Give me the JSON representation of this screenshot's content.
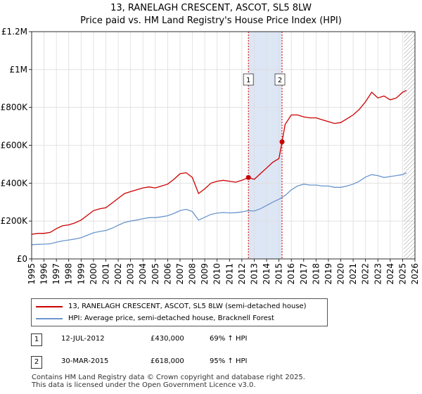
{
  "title": "13, RANELAGH CRESCENT, ASCOT, SL5 8LW",
  "subtitle": "Price paid vs. HM Land Registry's House Price Index (HPI)",
  "legend": {
    "property_label": "13, RANELAGH CRESCENT, ASCOT, SL5 8LW (semi-detached house)",
    "hpi_label": "HPI: Average price, semi-detached house, Bracknell Forest"
  },
  "transactions": [
    {
      "num": "1",
      "date": "12-JUL-2012",
      "price": "£430,000",
      "hpi": "69% ↑ HPI"
    },
    {
      "num": "2",
      "date": "30-MAR-2015",
      "price": "£618,000",
      "hpi": "95% ↑ HPI"
    }
  ],
  "footer": {
    "line1": "Contains HM Land Registry data © Crown copyright and database right 2025.",
    "line2": "This data is licensed under the Open Government Licence v3.0."
  },
  "colors": {
    "property": "#cc0000",
    "hpi": "#6a96cc",
    "highlight": "#dde6f5",
    "grid": "#dddddd",
    "marker_line": "#cc0000"
  },
  "chart_data": {
    "type": "line",
    "x_range": [
      1995,
      2026
    ],
    "y_range": [
      0,
      1200000
    ],
    "x_ticks": [
      "1995",
      "1996",
      "1997",
      "1998",
      "1999",
      "2000",
      "2001",
      "2002",
      "2003",
      "2004",
      "2005",
      "2006",
      "2007",
      "2008",
      "2009",
      "2010",
      "2011",
      "2012",
      "2013",
      "2014",
      "2015",
      "2016",
      "2017",
      "2018",
      "2019",
      "2020",
      "2021",
      "2022",
      "2023",
      "2024",
      "2025",
      "2026"
    ],
    "y_ticks": [
      {
        "value": 0,
        "label": "£0"
      },
      {
        "value": 200000,
        "label": "£200K"
      },
      {
        "value": 400000,
        "label": "£400K"
      },
      {
        "value": 600000,
        "label": "£600K"
      },
      {
        "value": 800000,
        "label": "£800K"
      },
      {
        "value": 1000000,
        "label": "£1M"
      },
      {
        "value": 1200000,
        "label": "£1.2M"
      }
    ],
    "highlight_range": [
      2012.53,
      2015.25
    ],
    "forecast_start": 2025.1,
    "series": [
      {
        "name": "13, RANELAGH CRESCENT, ASCOT, SL5 8LW (semi-detached house)",
        "x": [
          1995,
          1995.5,
          1996,
          1996.5,
          1997,
          1997.5,
          1998,
          1998.5,
          1999,
          1999.5,
          2000,
          2000.5,
          2001,
          2001.5,
          2002,
          2002.5,
          2003,
          2003.5,
          2004,
          2004.5,
          2005,
          2005.5,
          2006,
          2006.5,
          2007,
          2007.5,
          2008,
          2008.5,
          2009,
          2009.5,
          2010,
          2010.5,
          2011,
          2011.5,
          2012,
          2012.53,
          2013,
          2013.5,
          2014,
          2014.5,
          2015,
          2015.25,
          2015.5,
          2016,
          2016.5,
          2017,
          2017.5,
          2018,
          2018.5,
          2019,
          2019.5,
          2020,
          2020.5,
          2021,
          2021.5,
          2022,
          2022.5,
          2023,
          2023.5,
          2024,
          2024.5,
          2025,
          2025.3
        ],
        "y": [
          130000,
          135000,
          135000,
          140000,
          160000,
          175000,
          180000,
          190000,
          205000,
          230000,
          255000,
          265000,
          270000,
          295000,
          320000,
          345000,
          355000,
          365000,
          375000,
          380000,
          375000,
          385000,
          395000,
          420000,
          450000,
          455000,
          430000,
          345000,
          370000,
          400000,
          410000,
          415000,
          410000,
          405000,
          415000,
          430000,
          420000,
          450000,
          480000,
          510000,
          530000,
          618000,
          710000,
          760000,
          760000,
          750000,
          745000,
          745000,
          735000,
          725000,
          715000,
          720000,
          740000,
          760000,
          790000,
          830000,
          880000,
          850000,
          860000,
          840000,
          850000,
          880000,
          890000
        ]
      },
      {
        "name": "HPI: Average price, semi-detached house, Bracknell Forest",
        "x": [
          1995,
          1995.5,
          1996,
          1996.5,
          1997,
          1997.5,
          1998,
          1998.5,
          1999,
          1999.5,
          2000,
          2000.5,
          2001,
          2001.5,
          2002,
          2002.5,
          2003,
          2003.5,
          2004,
          2004.5,
          2005,
          2005.5,
          2006,
          2006.5,
          2007,
          2007.5,
          2008,
          2008.5,
          2009,
          2009.5,
          2010,
          2010.5,
          2011,
          2011.5,
          2012,
          2012.5,
          2013,
          2013.5,
          2014,
          2014.5,
          2015,
          2015.5,
          2016,
          2016.5,
          2017,
          2017.5,
          2018,
          2018.5,
          2019,
          2019.5,
          2020,
          2020.5,
          2021,
          2021.5,
          2022,
          2022.5,
          2023,
          2023.5,
          2024,
          2024.5,
          2025,
          2025.3
        ],
        "y": [
          75000,
          77000,
          78000,
          80000,
          88000,
          95000,
          100000,
          105000,
          112000,
          125000,
          138000,
          145000,
          150000,
          162000,
          178000,
          192000,
          200000,
          205000,
          212000,
          218000,
          218000,
          222000,
          228000,
          240000,
          255000,
          262000,
          250000,
          205000,
          220000,
          235000,
          242000,
          245000,
          243000,
          244000,
          248000,
          255000,
          253000,
          265000,
          282000,
          300000,
          315000,
          335000,
          365000,
          385000,
          395000,
          390000,
          390000,
          385000,
          385000,
          378000,
          378000,
          385000,
          395000,
          410000,
          432000,
          445000,
          440000,
          430000,
          435000,
          440000,
          445000,
          455000
        ]
      }
    ],
    "markers": [
      {
        "label": "1",
        "x": 2012.53,
        "y": 430000
      },
      {
        "label": "2",
        "x": 2015.25,
        "y": 618000
      }
    ]
  }
}
